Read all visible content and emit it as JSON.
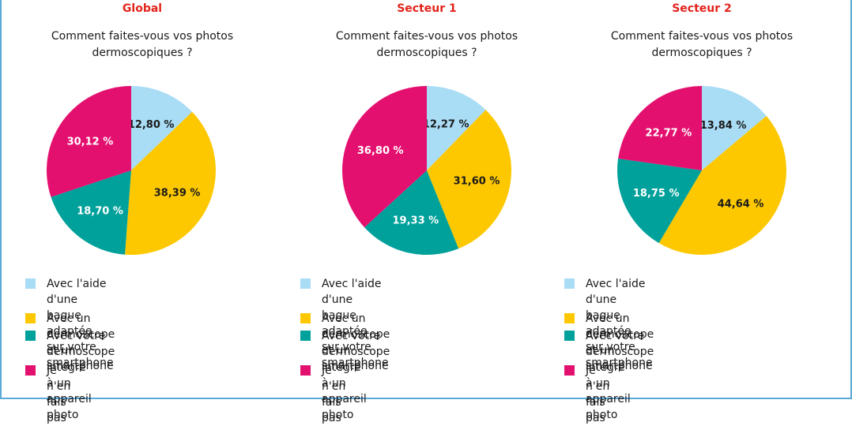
{
  "colors": {
    "border": "#5aa9d8",
    "title": "#e2231a",
    "light_blue": "#a9dcf5",
    "yellow": "#fdc800",
    "teal": "#00a19a",
    "magenta": "#e4106f"
  },
  "legend": [
    {
      "label": "Avec l'aide d'une bague adaptée\nsur votre smartphone",
      "color": "#a9dcf5"
    },
    {
      "label": "Avec un dermoscope et un smartphone",
      "color": "#fdc800"
    },
    {
      "label": "Avec votre dermoscope intégré\nà un appareil photo",
      "color": "#00a19a"
    },
    {
      "label": "Je n'en fais pas",
      "color": "#e4106f"
    }
  ],
  "chart_data": [
    {
      "type": "pie",
      "title": "Global",
      "subtitle": "Comment faites-vous vos photos\ndermoscopiques ?",
      "categories": [
        "Avec l'aide d'une bague adaptée sur votre smartphone",
        "Avec un dermoscope et un smartphone",
        "Avec votre dermoscope intégré à un appareil photo",
        "Je n'en fais pas"
      ],
      "values": [
        12.8,
        38.39,
        18.7,
        30.12
      ],
      "labels": [
        "12,80 %",
        "38,39 %",
        "18,70 %",
        "30,12 %"
      ]
    },
    {
      "type": "pie",
      "title": "Secteur 1",
      "subtitle": "Comment faites-vous vos photos\ndermoscopiques ?",
      "categories": [
        "Avec l'aide d'une bague adaptée sur votre smartphone",
        "Avec un dermoscope et un smartphone",
        "Avec votre dermoscope intégré à un appareil photo",
        "Je n'en fais pas"
      ],
      "values": [
        12.27,
        31.6,
        19.33,
        36.8
      ],
      "labels": [
        "12,27 %",
        "31,60 %",
        "19,33 %",
        "36,80 %"
      ]
    },
    {
      "type": "pie",
      "title": "Secteur 2",
      "subtitle": "Comment faites-vous vos photos\ndermoscopiques ?",
      "categories": [
        "Avec l'aide d'une bague adaptée sur votre smartphone",
        "Avec un dermoscope et un smartphone",
        "Avec votre dermoscope intégré à un appareil photo",
        "Je n'en fais pas"
      ],
      "values": [
        13.84,
        44.64,
        18.75,
        22.77
      ],
      "labels": [
        "13,84 %",
        "44,64 %",
        "18,75 %",
        "22,77 %"
      ]
    }
  ]
}
